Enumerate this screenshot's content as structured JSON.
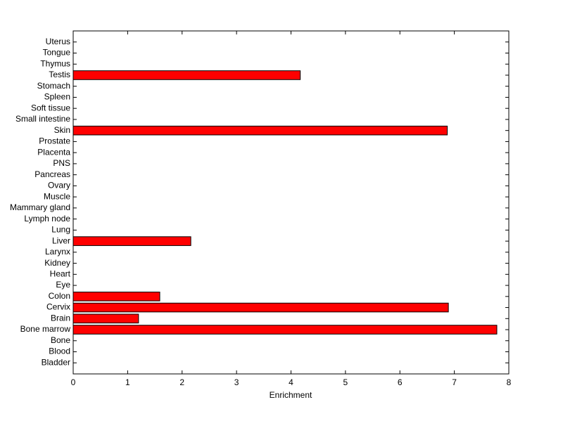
{
  "chart_data": {
    "type": "barh",
    "xlabel": "Enrichment",
    "categories": [
      "Bladder",
      "Blood",
      "Bone",
      "Bone marrow",
      "Brain",
      "Cervix",
      "Colon",
      "Eye",
      "Heart",
      "Kidney",
      "Larynx",
      "Liver",
      "Lung",
      "Lymph node",
      "Mammary gland",
      "Muscle",
      "Ovary",
      "Pancreas",
      "PNS",
      "Placenta",
      "Prostate",
      "Skin",
      "Small intestine",
      "Soft tissue",
      "Spleen",
      "Stomach",
      "Testis",
      "Thymus",
      "Tongue",
      "Uterus"
    ],
    "values": [
      0,
      0,
      0,
      7.78,
      1.2,
      6.89,
      1.59,
      0,
      0,
      0,
      0,
      2.16,
      0,
      0,
      0,
      0,
      0,
      0,
      0,
      0,
      0,
      6.87,
      0,
      0,
      0,
      0,
      4.17,
      0,
      0,
      0
    ],
    "color": "#ff0000",
    "xlim": [
      0,
      8
    ],
    "xticks": [
      0,
      1,
      2,
      3,
      4,
      5,
      6,
      7,
      8
    ]
  }
}
